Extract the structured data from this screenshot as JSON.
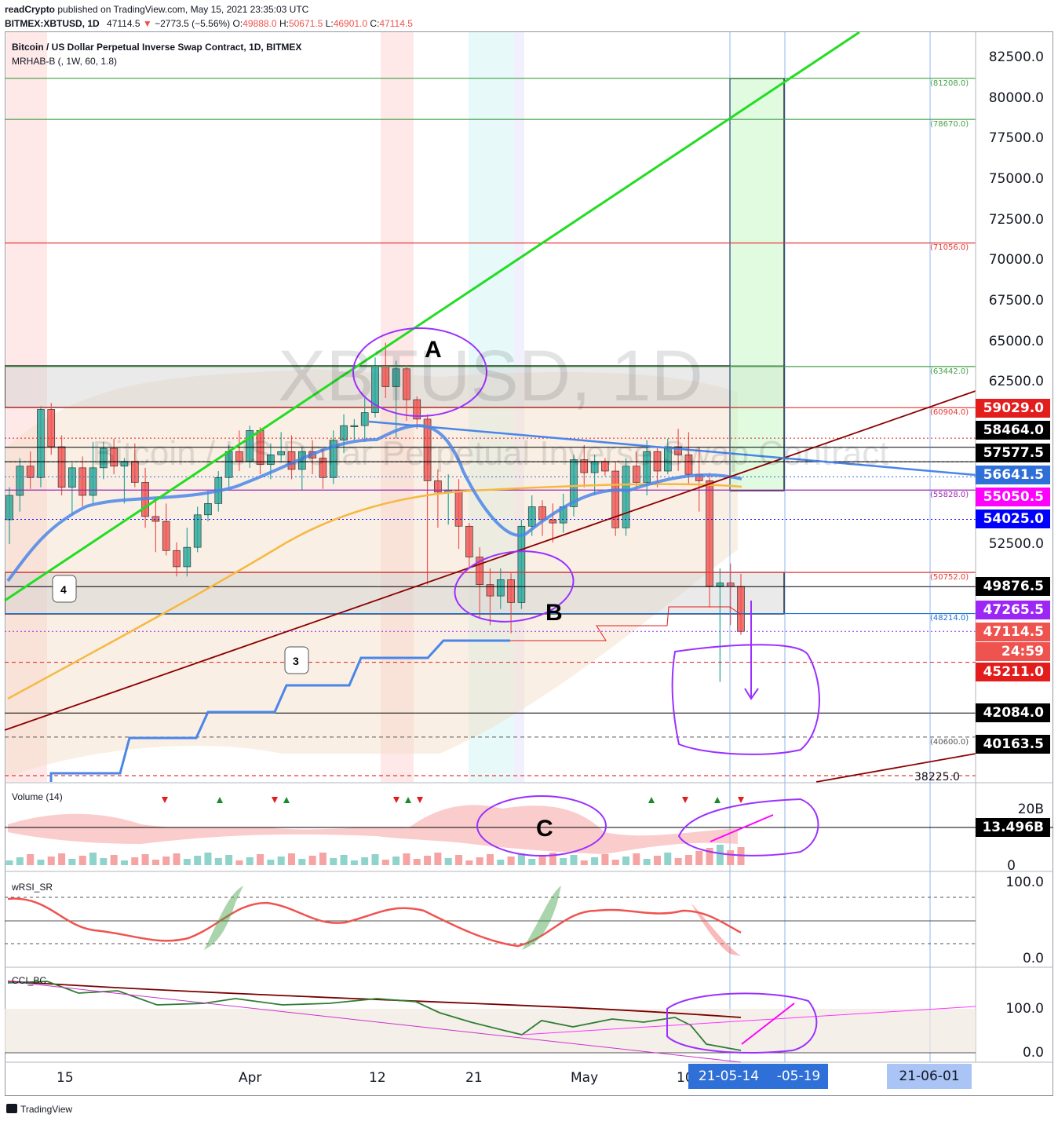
{
  "header": {
    "line1_author": "readCrypto",
    "line1_rest": " published on TradingView.com, May 15, 2021 23:35:03 UTC",
    "symbol": "BITMEX:XBTUSD, 1D",
    "last": "47114.5",
    "change": "−2773.5 (−5.56%)",
    "o_label": "O:",
    "o_value": "49888.0",
    "h_label": "H:",
    "h_value": "50671.5",
    "l_label": "L:",
    "l_value": "46901.0",
    "c_label": "C:",
    "c_value": "47114.5"
  },
  "chart_title": "Bitcoin / US Dollar Perpetual Inverse Swap Contract, 1D, BITMEX",
  "indicator_label": "MRHAB-B (, 1W, 60, 1.8)",
  "watermark": "XBTUSD, 1D",
  "watermark_sub": "Bitcoin / US Dollar Perpetual Inverse Swap Contract",
  "price_axis": [
    "82500.0",
    "80000.0",
    "77500.0",
    "75000.0",
    "72500.0",
    "70000.0",
    "67500.0",
    "65000.0",
    "62500.0",
    "52500.0"
  ],
  "price_labels": [
    {
      "value": "59029.0",
      "color": "#e31c1c"
    },
    {
      "value": "58464.0",
      "color": "#000000"
    },
    {
      "value": "57577.5",
      "color": "#000000"
    },
    {
      "value": "56641.5",
      "color": "#2f6fd8"
    },
    {
      "value": "55050.5",
      "color": "#ff00ff"
    },
    {
      "value": "54025.0",
      "color": "#0000ff"
    },
    {
      "value": "49876.5",
      "color": "#000000"
    },
    {
      "value": "47265.5",
      "color": "#9c27f5"
    },
    {
      "value": "47114.5",
      "color": "#ef5350"
    },
    {
      "value": "24:59",
      "color": "#ef5350"
    },
    {
      "value": "45211.0",
      "color": "#e31c1c"
    },
    {
      "value": "42084.0",
      "color": "#000000"
    },
    {
      "value": "40163.5",
      "color": "#000000"
    }
  ],
  "level_labels": [
    {
      "value": "(81208.0)",
      "color": "#43a047"
    },
    {
      "value": "(78670.0)",
      "color": "#43a047"
    },
    {
      "value": "(71056.0)",
      "color": "#e53935"
    },
    {
      "value": "(63442.0)",
      "color": "#43a047"
    },
    {
      "value": "(60904.0)",
      "color": "#e53935"
    },
    {
      "value": "(55828.0)",
      "color": "#9c27b0"
    },
    {
      "value": "(50752.0)",
      "color": "#e53935"
    },
    {
      "value": "(48214.0)",
      "color": "#1e6fd8"
    },
    {
      "value": "(40600.0)",
      "color": "#555555"
    },
    {
      "value": "38225.0",
      "color": "#131722"
    }
  ],
  "annotations": {
    "a": "A",
    "b": "B",
    "c": "C",
    "callout_4": "4",
    "callout_3": "3"
  },
  "volume": {
    "title": "Volume (14)",
    "axis_top": "20B",
    "axis_bottom": "0",
    "last": "13.496B"
  },
  "rsi": {
    "title": "wRSI_SR",
    "axis_top": "100.0",
    "axis_bottom": "0.0"
  },
  "cci": {
    "title": "CCI_BC",
    "axis_top": "100.0",
    "axis_bottom": "0.0"
  },
  "x_axis": {
    "labels": [
      "15",
      "Apr",
      "12",
      "21",
      "May",
      "10"
    ],
    "box1": "21-05-14",
    "box2": "-05-19",
    "box3": "21-06-01"
  },
  "branding": "TradingView",
  "colors": {
    "up": "#26a69a",
    "down": "#ef5350",
    "trend_green": "#22dd22",
    "trend_red": "#8b0000",
    "blue_line": "#4a86e8",
    "purple": "#9b30ff"
  },
  "chart_data": {
    "type": "candlestick",
    "title": "Bitcoin / US Dollar Perpetual Inverse Swap Contract, 1D, BITMEX",
    "interval": "1D",
    "ylim": [
      38225,
      84000
    ],
    "ohlc_last": {
      "open": 49888.0,
      "high": 50671.5,
      "low": 46901.0,
      "close": 47114.5
    },
    "candles": [
      [
        54000,
        56000,
        52500,
        55500
      ],
      [
        55500,
        57800,
        54500,
        57300
      ],
      [
        57300,
        58200,
        55900,
        56600
      ],
      [
        56600,
        61000,
        56000,
        60800
      ],
      [
        60800,
        61200,
        58000,
        58500
      ],
      [
        58500,
        59200,
        55500,
        56000
      ],
      [
        56000,
        57500,
        54300,
        57200
      ],
      [
        57200,
        57900,
        54800,
        55500
      ],
      [
        55500,
        58800,
        55000,
        57200
      ],
      [
        57200,
        58800,
        56500,
        58400
      ],
      [
        58400,
        59000,
        56800,
        57300
      ],
      [
        57300,
        57800,
        55000,
        57600
      ],
      [
        57600,
        58700,
        56000,
        56300
      ],
      [
        56300,
        57200,
        53500,
        54200
      ],
      [
        54200,
        55300,
        52000,
        53900
      ],
      [
        53900,
        55000,
        51800,
        52100
      ],
      [
        52100,
        52600,
        50500,
        51100
      ],
      [
        51100,
        53500,
        50500,
        52300
      ],
      [
        52300,
        54800,
        52000,
        54300
      ],
      [
        54300,
        55800,
        53900,
        55000
      ],
      [
        55000,
        57000,
        54500,
        56600
      ],
      [
        56600,
        58600,
        56000,
        58200
      ],
      [
        58200,
        59500,
        57000,
        57600
      ],
      [
        57600,
        59800,
        57200,
        59500
      ],
      [
        59500,
        59700,
        56800,
        57400
      ],
      [
        57400,
        58700,
        56500,
        58000
      ],
      [
        58000,
        59400,
        57500,
        58200
      ],
      [
        58200,
        59200,
        56500,
        57100
      ],
      [
        57100,
        58500,
        55800,
        58200
      ],
      [
        58200,
        58900,
        56800,
        57800
      ],
      [
        57800,
        58400,
        55900,
        56600
      ],
      [
        56600,
        59500,
        56200,
        58900
      ],
      [
        58900,
        60500,
        58100,
        59800
      ],
      [
        59800,
        60200,
        58900,
        59800
      ],
      [
        59800,
        61500,
        58800,
        60600
      ],
      [
        60600,
        64000,
        60300,
        63500
      ],
      [
        63500,
        64900,
        61500,
        62200
      ],
      [
        62200,
        63800,
        59000,
        63300
      ],
      [
        63300,
        63500,
        60100,
        61400
      ],
      [
        61400,
        61600,
        59600,
        60200
      ],
      [
        60200,
        60500,
        50000,
        56400
      ],
      [
        56400,
        57100,
        53500,
        55700
      ],
      [
        55700,
        56800,
        53700,
        55800
      ],
      [
        55800,
        56500,
        52200,
        53600
      ],
      [
        53600,
        53800,
        51000,
        51700
      ],
      [
        51700,
        52300,
        48000,
        50000
      ],
      [
        50000,
        51000,
        47500,
        49300
      ],
      [
        49300,
        51000,
        48500,
        50300
      ],
      [
        50300,
        50700,
        47000,
        48900
      ],
      [
        48900,
        54000,
        48500,
        53600
      ],
      [
        53600,
        55500,
        53000,
        54800
      ],
      [
        54800,
        55200,
        53000,
        54000
      ],
      [
        54000,
        55000,
        52600,
        53800
      ],
      [
        53800,
        55600,
        53200,
        54800
      ],
      [
        54800,
        58000,
        54200,
        57700
      ],
      [
        57700,
        58600,
        56000,
        56900
      ],
      [
        56900,
        58000,
        55500,
        57600
      ],
      [
        57600,
        57800,
        56700,
        57000
      ],
      [
        57000,
        57600,
        53000,
        53500
      ],
      [
        53500,
        57800,
        53000,
        57300
      ],
      [
        57300,
        58200,
        56000,
        56300
      ],
      [
        56300,
        58900,
        55500,
        58200
      ],
      [
        58200,
        58500,
        56000,
        57000
      ],
      [
        57000,
        59000,
        56800,
        58500
      ],
      [
        58500,
        59600,
        57000,
        58000
      ],
      [
        58000,
        59400,
        56200,
        56800
      ],
      [
        56800,
        58500,
        54500,
        56400
      ],
      [
        56400,
        56900,
        48600,
        49900
      ],
      [
        49900,
        51000,
        44000,
        50100
      ],
      [
        50100,
        51300,
        47500,
        49888
      ],
      [
        49888,
        50671.5,
        46901,
        47114.5
      ]
    ],
    "horizontal_levels": [
      81208.0,
      78670.0,
      71056.0,
      63442.0,
      60904.0,
      55828.0,
      50752.0,
      48214.0,
      40600.0,
      38225.0
    ]
  }
}
